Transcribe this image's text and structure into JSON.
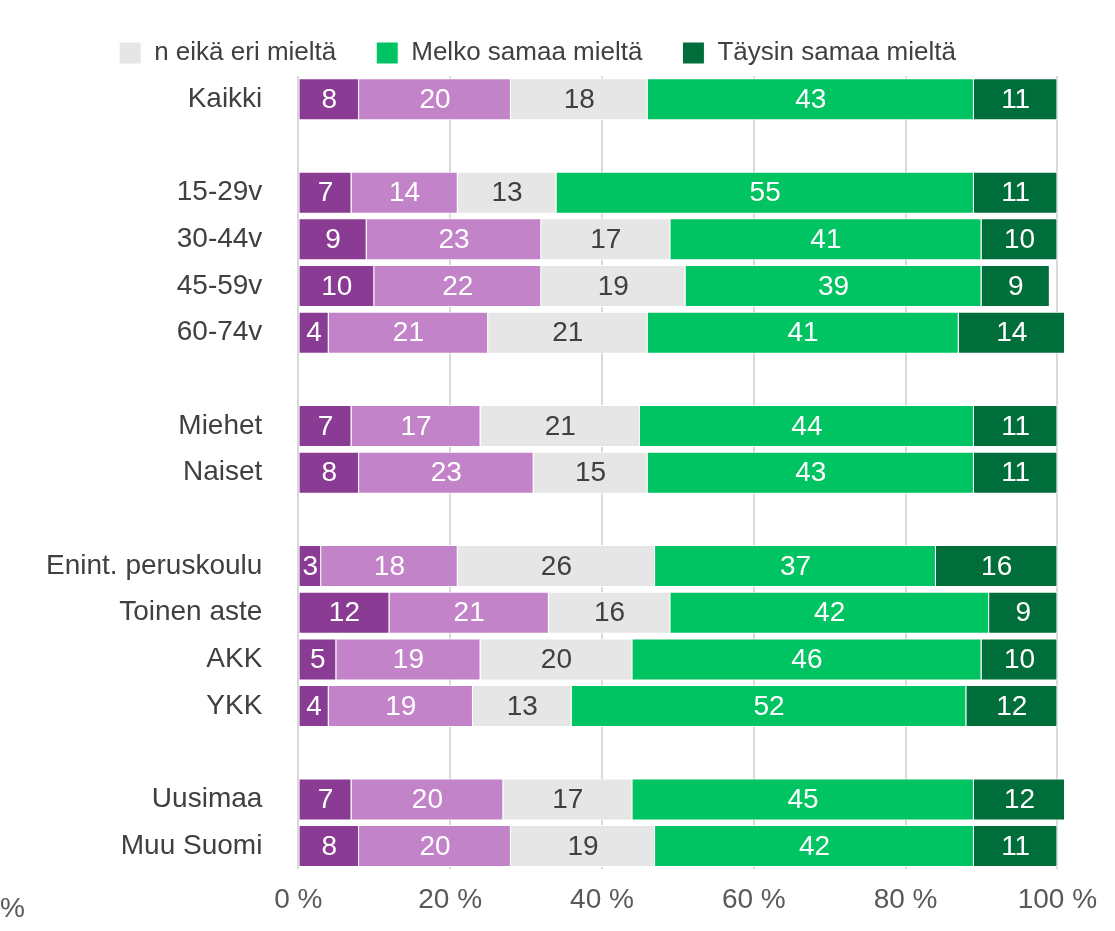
{
  "chart_data": {
    "type": "bar",
    "orientation": "horizontal",
    "stacked": true,
    "categories": [
      "Kaikki",
      null,
      "15-29v",
      "30-44v",
      "45-59v",
      "60-74v",
      null,
      "Miehet",
      "Naiset",
      null,
      "Enint. peruskoulu",
      "Toinen aste",
      "AKK",
      "YKK",
      null,
      "Uusimaa",
      "Muu Suomi"
    ],
    "series": [
      {
        "color": "#8a3b94",
        "values": [
          8,
          null,
          7,
          9,
          10,
          4,
          null,
          7,
          8,
          null,
          3,
          12,
          5,
          4,
          null,
          7,
          8
        ]
      },
      {
        "color": "#c383c9",
        "values": [
          20,
          null,
          14,
          23,
          22,
          21,
          null,
          17,
          23,
          null,
          18,
          21,
          19,
          19,
          null,
          20,
          20
        ]
      },
      {
        "name": "n eikä eri mieltä",
        "color": "#e6e6e6",
        "values": [
          18,
          null,
          13,
          17,
          19,
          21,
          null,
          21,
          15,
          null,
          26,
          16,
          20,
          13,
          null,
          17,
          19
        ]
      },
      {
        "name": "Melko samaa mieltä",
        "color": "#00c462",
        "values": [
          43,
          null,
          55,
          41,
          39,
          41,
          null,
          44,
          43,
          null,
          37,
          42,
          46,
          52,
          null,
          45,
          42
        ]
      },
      {
        "name": "Täysin samaa mieltä",
        "color": "#006e3a",
        "values": [
          11,
          null,
          11,
          10,
          9,
          14,
          null,
          11,
          11,
          null,
          16,
          9,
          10,
          12,
          null,
          12,
          11
        ]
      }
    ],
    "xlim": [
      0,
      101
    ],
    "xticks": [
      {
        "value": 0,
        "label": "0 %"
      },
      {
        "value": 20,
        "label": "20 %"
      },
      {
        "value": 40,
        "label": "40 %"
      },
      {
        "value": 60,
        "label": "60 %"
      },
      {
        "value": 80,
        "label": "80 %"
      },
      {
        "value": 100,
        "label": "100 %"
      }
    ],
    "grid": "x",
    "legend": "top",
    "data_labels": true,
    "annotations": [
      "%"
    ]
  }
}
